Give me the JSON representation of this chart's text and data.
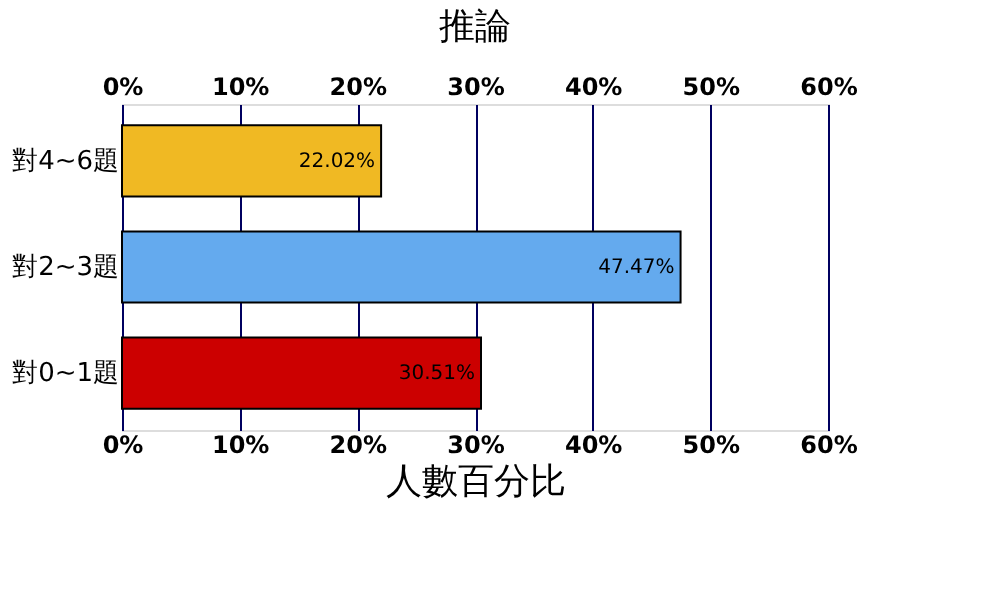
{
  "chart_data": {
    "type": "bar",
    "orientation": "horizontal",
    "title": "推論",
    "xlabel": "人數百分比",
    "categories": [
      "對4~6題",
      "對2~3題",
      "對0~1題"
    ],
    "values": [
      22.02,
      47.47,
      30.51
    ],
    "colors": [
      "#f0b923",
      "#64aaee",
      "#cc0000"
    ],
    "value_labels": [
      "22.02%",
      "47.47%",
      "30.51%"
    ],
    "xlim": [
      0,
      60
    ],
    "xticks": [
      {
        "value": 0,
        "label": "0%"
      },
      {
        "value": 10,
        "label": "10%"
      },
      {
        "value": 20,
        "label": "20%"
      },
      {
        "value": 30,
        "label": "30%"
      },
      {
        "value": 40,
        "label": "40%"
      },
      {
        "value": 50,
        "label": "50%"
      },
      {
        "value": 60,
        "label": "60%"
      }
    ],
    "x2lim": [
      0,
      60
    ],
    "x2ticks": [
      {
        "value": 0,
        "label": "0%"
      },
      {
        "value": 10,
        "label": "10%"
      },
      {
        "value": 20,
        "label": "20%"
      },
      {
        "value": 30,
        "label": "30%"
      },
      {
        "value": 40,
        "label": "40%"
      },
      {
        "value": 50,
        "label": "50%"
      },
      {
        "value": 60,
        "label": "60%"
      }
    ],
    "grid": "x"
  }
}
